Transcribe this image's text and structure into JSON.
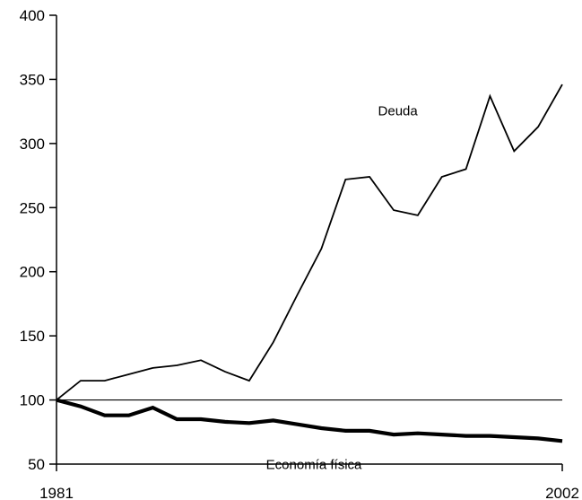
{
  "chart_data": {
    "type": "line",
    "x": [
      1981,
      1982,
      1983,
      1984,
      1985,
      1986,
      1987,
      1988,
      1989,
      1990,
      1991,
      1992,
      1993,
      1994,
      1995,
      1996,
      1997,
      1998,
      1999,
      2000,
      2001,
      2002
    ],
    "series": [
      {
        "name": "Deuda",
        "color": "#000000",
        "values": [
          100,
          115,
          115,
          120,
          125,
          127,
          131,
          122,
          115,
          145,
          182,
          218,
          272,
          274,
          248,
          244,
          274,
          280,
          337,
          294,
          313,
          346
        ]
      },
      {
        "name": "Economía física",
        "color": "#000000",
        "values": [
          100,
          95,
          88,
          88,
          94,
          85,
          85,
          83,
          82,
          84,
          81,
          78,
          76,
          76,
          73,
          74,
          73,
          72,
          72,
          71,
          70,
          68
        ]
      }
    ],
    "x_tick_labels": [
      "1981",
      "2002"
    ],
    "y_tick_labels": [
      "50",
      "100",
      "150",
      "200",
      "250",
      "300",
      "350",
      "400"
    ],
    "xlim": [
      1981,
      2002
    ],
    "ylim": [
      50,
      400
    ],
    "reference_line": 100,
    "grid": false,
    "title": "",
    "xlabel": "",
    "ylabel": ""
  }
}
